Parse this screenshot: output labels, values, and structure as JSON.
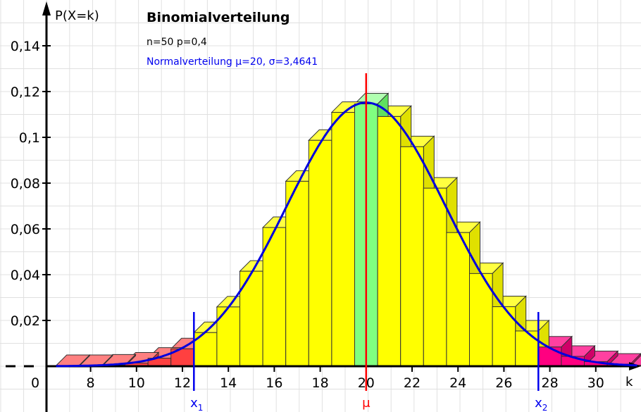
{
  "chart_data": {
    "type": "bar",
    "title": "Binomialverteilung",
    "subtitle": "n=50 p=0,4",
    "overlay_label": "Normalverteilung μ=20, σ=3,4641",
    "xlabel": "k",
    "ylabel": "P(X=k)",
    "n": 50,
    "p": 0.4,
    "mu": 20,
    "sigma": 3.4641,
    "x_ticks": [
      "0",
      "8",
      "10",
      "12",
      "14",
      "16",
      "18",
      "20",
      "22",
      "24",
      "26",
      "28",
      "30"
    ],
    "y_ticks": [
      "0,02",
      "0,04",
      "0,06",
      "0,08",
      "0,1",
      "0,12",
      "0,14"
    ],
    "ylim": [
      0,
      0.15
    ],
    "xlim_visible": [
      6.5,
      33
    ],
    "categories": [
      7,
      8,
      9,
      10,
      11,
      12,
      13,
      14,
      15,
      16,
      17,
      18,
      19,
      20,
      21,
      22,
      23,
      24,
      25,
      26,
      27,
      28,
      29,
      30,
      31,
      32
    ],
    "values": [
      4e-05,
      0.0002,
      0.0005,
      0.0014,
      0.0035,
      0.0076,
      0.0147,
      0.0259,
      0.0415,
      0.0606,
      0.0808,
      0.0987,
      0.1109,
      0.1146,
      0.1091,
      0.0959,
      0.0778,
      0.0584,
      0.0405,
      0.026,
      0.0154,
      0.0084,
      0.0043,
      0.002,
      0.0009,
      0.0004
    ],
    "markers": [
      {
        "label": "x1",
        "sub": "1",
        "x": 12.5,
        "color": "#0000ee"
      },
      {
        "label": "μ",
        "x": 20,
        "color": "#ff0000"
      },
      {
        "label": "x2",
        "sub": "2",
        "x": 27.5,
        "color": "#0000ee"
      }
    ],
    "regions": [
      {
        "name": "left-tail",
        "range": [
          7,
          12
        ],
        "color": "#ff4040"
      },
      {
        "name": "center",
        "range": [
          13,
          27
        ],
        "color": "#ffff00"
      },
      {
        "name": "mean-bar",
        "range": [
          20,
          20
        ],
        "color": "#80ff80"
      },
      {
        "name": "right-tail",
        "range": [
          28,
          32
        ],
        "color": "#ff0080"
      }
    ],
    "grid": true
  }
}
